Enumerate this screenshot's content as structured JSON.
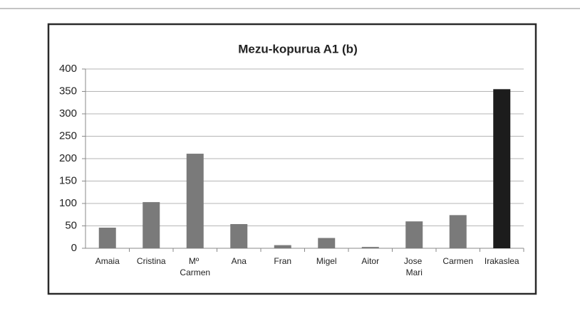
{
  "chart_data": {
    "type": "bar",
    "title": "Mezu-kopurua A1 (b)",
    "categories": [
      "Amaia",
      "Cristina",
      "Mº Carmen",
      "Ana",
      "Fran",
      "Migel",
      "Aitor",
      "Jose Mari",
      "Carmen",
      "Irakaslea"
    ],
    "values": [
      46,
      103,
      211,
      54,
      7,
      23,
      3,
      60,
      74,
      355
    ],
    "colors": [
      "#7a7a7a",
      "#7a7a7a",
      "#7a7a7a",
      "#7a7a7a",
      "#7a7a7a",
      "#7a7a7a",
      "#7a7a7a",
      "#7a7a7a",
      "#7a7a7a",
      "#1c1c1c"
    ],
    "ylim": [
      0,
      400
    ],
    "yticks": [
      0,
      50,
      100,
      150,
      200,
      250,
      300,
      350,
      400
    ],
    "grid": true
  }
}
